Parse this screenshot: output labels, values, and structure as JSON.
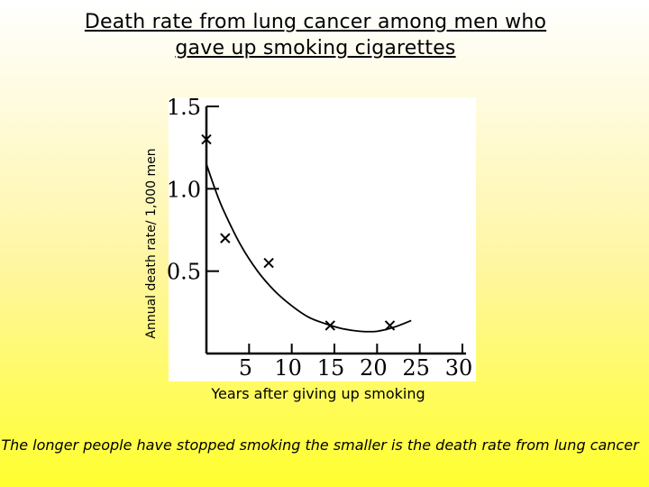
{
  "slide": {
    "title_line1": "Death rate from lung cancer among men who",
    "title_line2": "gave up smoking cigarettes",
    "caption": "The longer people have stopped smoking the smaller is the death rate from lung cancer"
  },
  "chart_data": {
    "type": "scatter",
    "title": "Death rate from lung cancer among men who gave up smoking cigarettes",
    "xlabel": "Years after giving up smoking",
    "ylabel": "Annual death rate/ 1,000 men",
    "xlim": [
      0,
      30
    ],
    "ylim": [
      0,
      1.5
    ],
    "x_ticks": [
      5,
      10,
      15,
      20,
      25,
      30
    ],
    "x_tick_labels": [
      "5",
      "10",
      "15",
      "20",
      "25",
      "30"
    ],
    "y_ticks": [
      0.5,
      1.0,
      1.5
    ],
    "y_tick_labels": [
      "0.5",
      "1.0",
      "1.5"
    ],
    "series": [
      {
        "marker": "x",
        "points": [
          {
            "x": 0,
            "y": 1.3
          },
          {
            "x": 2.2,
            "y": 0.7
          },
          {
            "x": 7.3,
            "y": 0.55
          },
          {
            "x": 14.5,
            "y": 0.17
          },
          {
            "x": 21.5,
            "y": 0.17
          }
        ]
      }
    ],
    "trend_curve": [
      {
        "x": 0,
        "y": 1.15
      },
      {
        "x": 1,
        "y": 1.0
      },
      {
        "x": 2,
        "y": 0.87
      },
      {
        "x": 4,
        "y": 0.66
      },
      {
        "x": 6,
        "y": 0.5
      },
      {
        "x": 8,
        "y": 0.38
      },
      {
        "x": 10,
        "y": 0.29
      },
      {
        "x": 12,
        "y": 0.22
      },
      {
        "x": 14,
        "y": 0.18
      },
      {
        "x": 16,
        "y": 0.15
      },
      {
        "x": 18,
        "y": 0.135
      },
      {
        "x": 20,
        "y": 0.135
      },
      {
        "x": 22,
        "y": 0.16
      },
      {
        "x": 24,
        "y": 0.2
      }
    ],
    "grid": false,
    "legend": "none",
    "plot_background": "#ffffff"
  }
}
